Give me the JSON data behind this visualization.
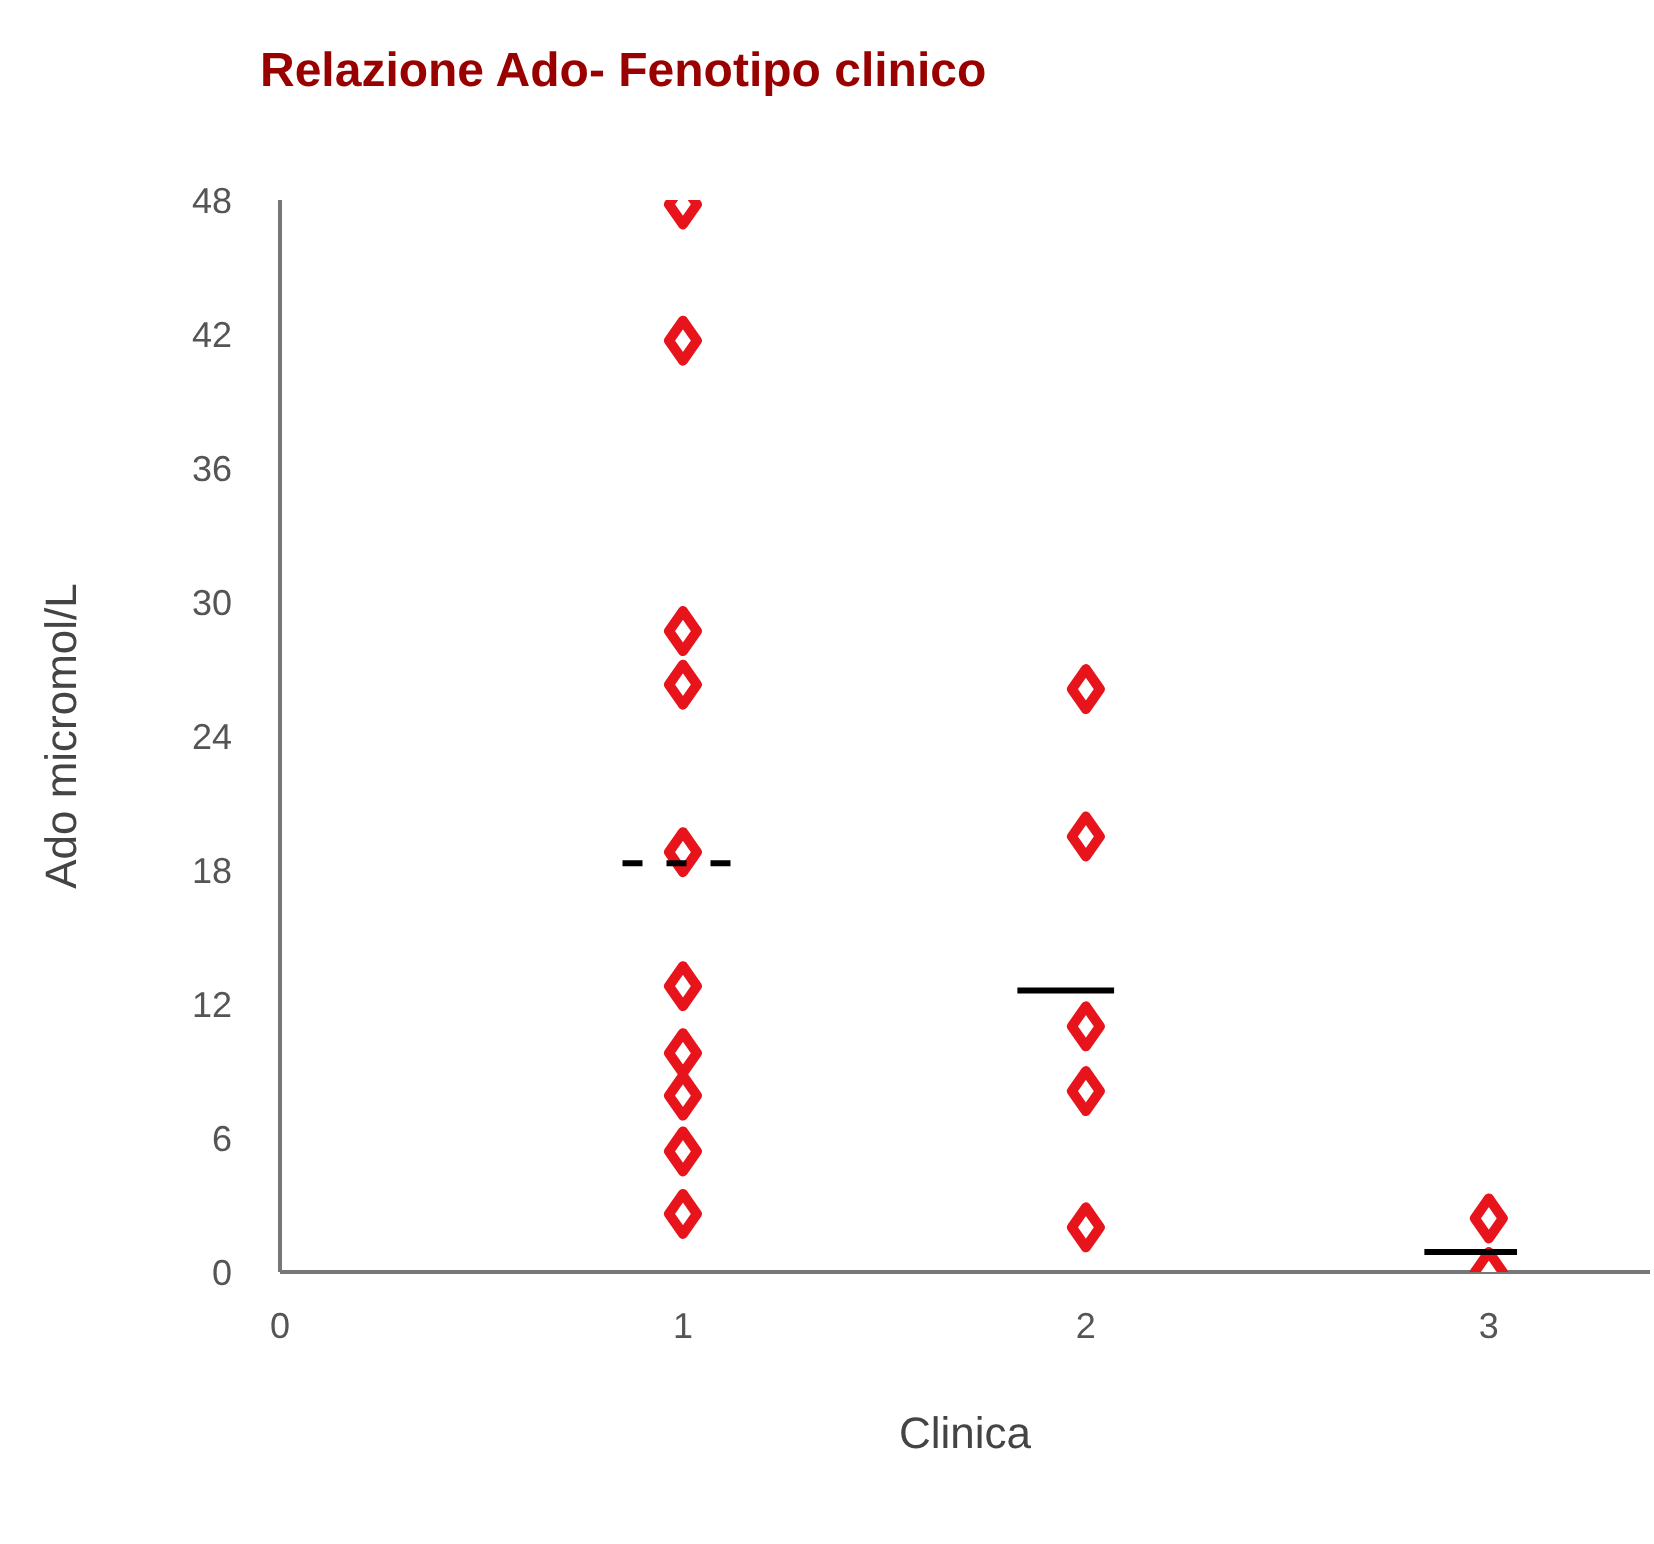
{
  "chart_data": {
    "type": "scatter",
    "title": "Relazione Ado- Fenotipo clinico",
    "xlabel": "Clinica",
    "ylabel": "Ado micromol/L",
    "xlim": [
      0,
      3.4
    ],
    "xticks": [
      0,
      1,
      2,
      3
    ],
    "ylim": [
      0,
      48
    ],
    "yticks": [
      0,
      6,
      12,
      18,
      24,
      30,
      36,
      42,
      48
    ],
    "grid": false,
    "legend": false,
    "marker": "diamond",
    "series": [
      {
        "color": "#e8141c",
        "x": [
          1,
          1,
          1,
          1,
          1,
          1,
          1,
          1,
          1,
          1,
          2,
          2,
          2,
          2,
          2,
          3,
          3
        ],
        "values": [
          47.8,
          41.7,
          28.7,
          26.3,
          18.8,
          12.8,
          9.8,
          7.9,
          5.4,
          2.6,
          26.1,
          19.5,
          11.0,
          8.1,
          2.0,
          2.4,
          0
        ]
      },
      {
        "type": "line",
        "color": "#000000",
        "marker": "none",
        "line_style": "dashed",
        "x": [
          0.85,
          1.14
        ],
        "values": [
          18.3,
          18.3
        ]
      },
      {
        "type": "line",
        "color": "#000000",
        "marker": "none",
        "line_style": "solid",
        "x": [
          1.83,
          2.07
        ],
        "values": [
          12.6,
          12.6
        ]
      },
      {
        "type": "line",
        "color": "#000000",
        "marker": "none",
        "line_style": "solid",
        "x": [
          2.84,
          3.07
        ],
        "values": [
          0.9,
          0.9
        ]
      }
    ]
  }
}
